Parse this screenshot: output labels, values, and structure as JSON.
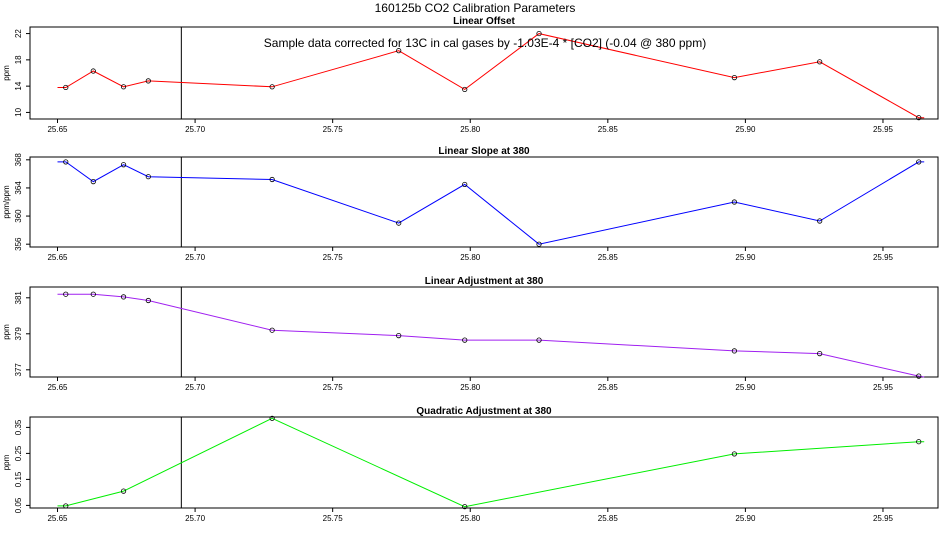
{
  "title": "160125b   CO2 Calibration Parameters",
  "annotation": "Sample data corrected for 13C in cal gases by -1.03E-4 * [CO2] (-0.04 @ 380 ppm)",
  "chart_data": [
    {
      "type": "line",
      "title": "Linear Offset",
      "ylabel": "ppm",
      "color": "#ff0000",
      "xlim": [
        25.64,
        25.97
      ],
      "ylim": [
        9,
        23
      ],
      "xticks": [
        25.65,
        25.7,
        25.75,
        25.8,
        25.85,
        25.9,
        25.95
      ],
      "xtick_labels": [
        "25.65",
        "25.70",
        "25.75",
        "25.80",
        "25.85",
        "25.90",
        "25.95"
      ],
      "yticks": [
        10,
        14,
        18,
        22
      ],
      "ytick_labels": [
        "10",
        "14",
        "18",
        "22"
      ],
      "vline_x": 25.695,
      "lead": [
        25.65,
        13.8
      ],
      "tail": [
        25.965,
        9.2
      ],
      "x": [
        25.653,
        25.663,
        25.674,
        25.683,
        25.728,
        25.774,
        25.798,
        25.825,
        25.896,
        25.927,
        25.963
      ],
      "y": [
        13.8,
        16.3,
        13.9,
        14.8,
        13.9,
        19.4,
        13.5,
        22.0,
        15.3,
        17.7,
        9.2
      ]
    },
    {
      "type": "line",
      "title": "Linear Slope at 380",
      "ylabel": "ppm/ppm",
      "color": "#0000ff",
      "xlim": [
        25.64,
        25.97
      ],
      "ylim": [
        355.6,
        368.4
      ],
      "xticks": [
        25.65,
        25.7,
        25.75,
        25.8,
        25.85,
        25.9,
        25.95
      ],
      "xtick_labels": [
        "25.65",
        "25.70",
        "25.75",
        "25.80",
        "25.85",
        "25.90",
        "25.95"
      ],
      "yticks": [
        356,
        360,
        364,
        368
      ],
      "ytick_labels": [
        "356",
        "360",
        "364",
        "368"
      ],
      "vline_x": 25.695,
      "lead": [
        25.65,
        367.7
      ],
      "tail": [
        25.965,
        367.7
      ],
      "x": [
        25.653,
        25.663,
        25.674,
        25.683,
        25.728,
        25.774,
        25.798,
        25.825,
        25.896,
        25.927,
        25.963
      ],
      "y": [
        367.7,
        364.9,
        367.3,
        365.6,
        365.2,
        359.0,
        364.5,
        356.0,
        362.0,
        359.3,
        367.7
      ]
    },
    {
      "type": "line",
      "title": "Linear Adjustment at 380",
      "ylabel": "ppm",
      "color": "#a020f0",
      "xlim": [
        25.64,
        25.97
      ],
      "ylim": [
        376.6,
        381.6
      ],
      "xticks": [
        25.65,
        25.7,
        25.75,
        25.8,
        25.85,
        25.9,
        25.95
      ],
      "xtick_labels": [
        "25.65",
        "25.70",
        "25.75",
        "25.80",
        "25.85",
        "25.90",
        "25.95"
      ],
      "yticks": [
        377,
        379,
        381
      ],
      "ytick_labels": [
        "377",
        "379",
        "381"
      ],
      "vline_x": 25.695,
      "lead": [
        25.65,
        381.2
      ],
      "tail": [
        25.965,
        376.6
      ],
      "x": [
        25.653,
        25.663,
        25.674,
        25.683,
        25.728,
        25.774,
        25.798,
        25.825,
        25.896,
        25.927,
        25.963
      ],
      "y": [
        381.2,
        381.2,
        381.05,
        380.85,
        379.2,
        378.9,
        378.65,
        378.65,
        378.05,
        377.9,
        376.65
      ]
    },
    {
      "type": "line",
      "title": "Quadratic Adjustment at 380",
      "ylabel": "ppm",
      "color": "#00ee00",
      "xlim": [
        25.64,
        25.97
      ],
      "ylim": [
        0.04,
        0.39
      ],
      "xticks": [
        25.65,
        25.7,
        25.75,
        25.8,
        25.85,
        25.9,
        25.95
      ],
      "xtick_labels": [
        "25.65",
        "25.70",
        "25.75",
        "25.80",
        "25.85",
        "25.90",
        "25.95"
      ],
      "yticks": [
        0.05,
        0.15,
        0.25,
        0.35
      ],
      "ytick_labels": [
        "0.05",
        "0.15",
        "0.25",
        "0.35"
      ],
      "vline_x": 25.695,
      "lead": [
        25.65,
        0.048
      ],
      "tail": [
        25.965,
        0.295
      ],
      "x": [
        25.653,
        25.674,
        25.728,
        25.798,
        25.896,
        25.963
      ],
      "y": [
        0.048,
        0.105,
        0.385,
        0.045,
        0.248,
        0.295
      ]
    }
  ]
}
